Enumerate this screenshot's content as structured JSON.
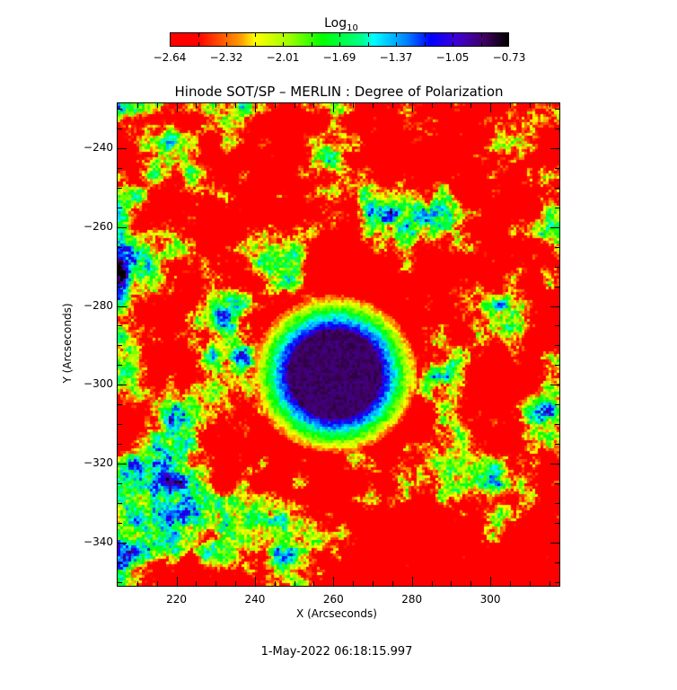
{
  "chart_data": {
    "type": "heatmap",
    "title": "Hinode SOT/SP – MERLIN : Degree of Polarization",
    "xlabel": "X (Arcseconds)",
    "ylabel": "Y (Arcseconds)",
    "xlim": [
      205,
      317.6
    ],
    "ylim": [
      -351,
      -228.6
    ],
    "x_ticks": [
      "220",
      "240",
      "260",
      "280",
      "300"
    ],
    "x_tick_values": [
      220,
      240,
      260,
      280,
      300
    ],
    "y_ticks": [
      "−240",
      "−260",
      "−280",
      "−300",
      "−320",
      "−340"
    ],
    "y_tick_values": [
      -240,
      -260,
      -280,
      -300,
      -320,
      -340
    ],
    "colorbar": {
      "label": "Log",
      "label_sub": "10",
      "range": [
        -2.64,
        -0.73
      ],
      "ticks": [
        "−2.64",
        "−2.32",
        "−2.01",
        "−1.69",
        "−1.37",
        "−1.05",
        "−0.73"
      ],
      "colormap": "rainbow red-yellow-green-cyan-blue-purple-black",
      "colors": [
        "#ff0000",
        "#ffff00",
        "#00ff00",
        "#00ffff",
        "#0000ff",
        "#400060",
        "#000000"
      ]
    },
    "features": {
      "sunspot_center": [
        260,
        -297
      ],
      "background_level": -2.55,
      "umbra_level": -0.85
    },
    "grid": false
  },
  "footer": {
    "date": "1-May-2022 06:18:15.997"
  }
}
